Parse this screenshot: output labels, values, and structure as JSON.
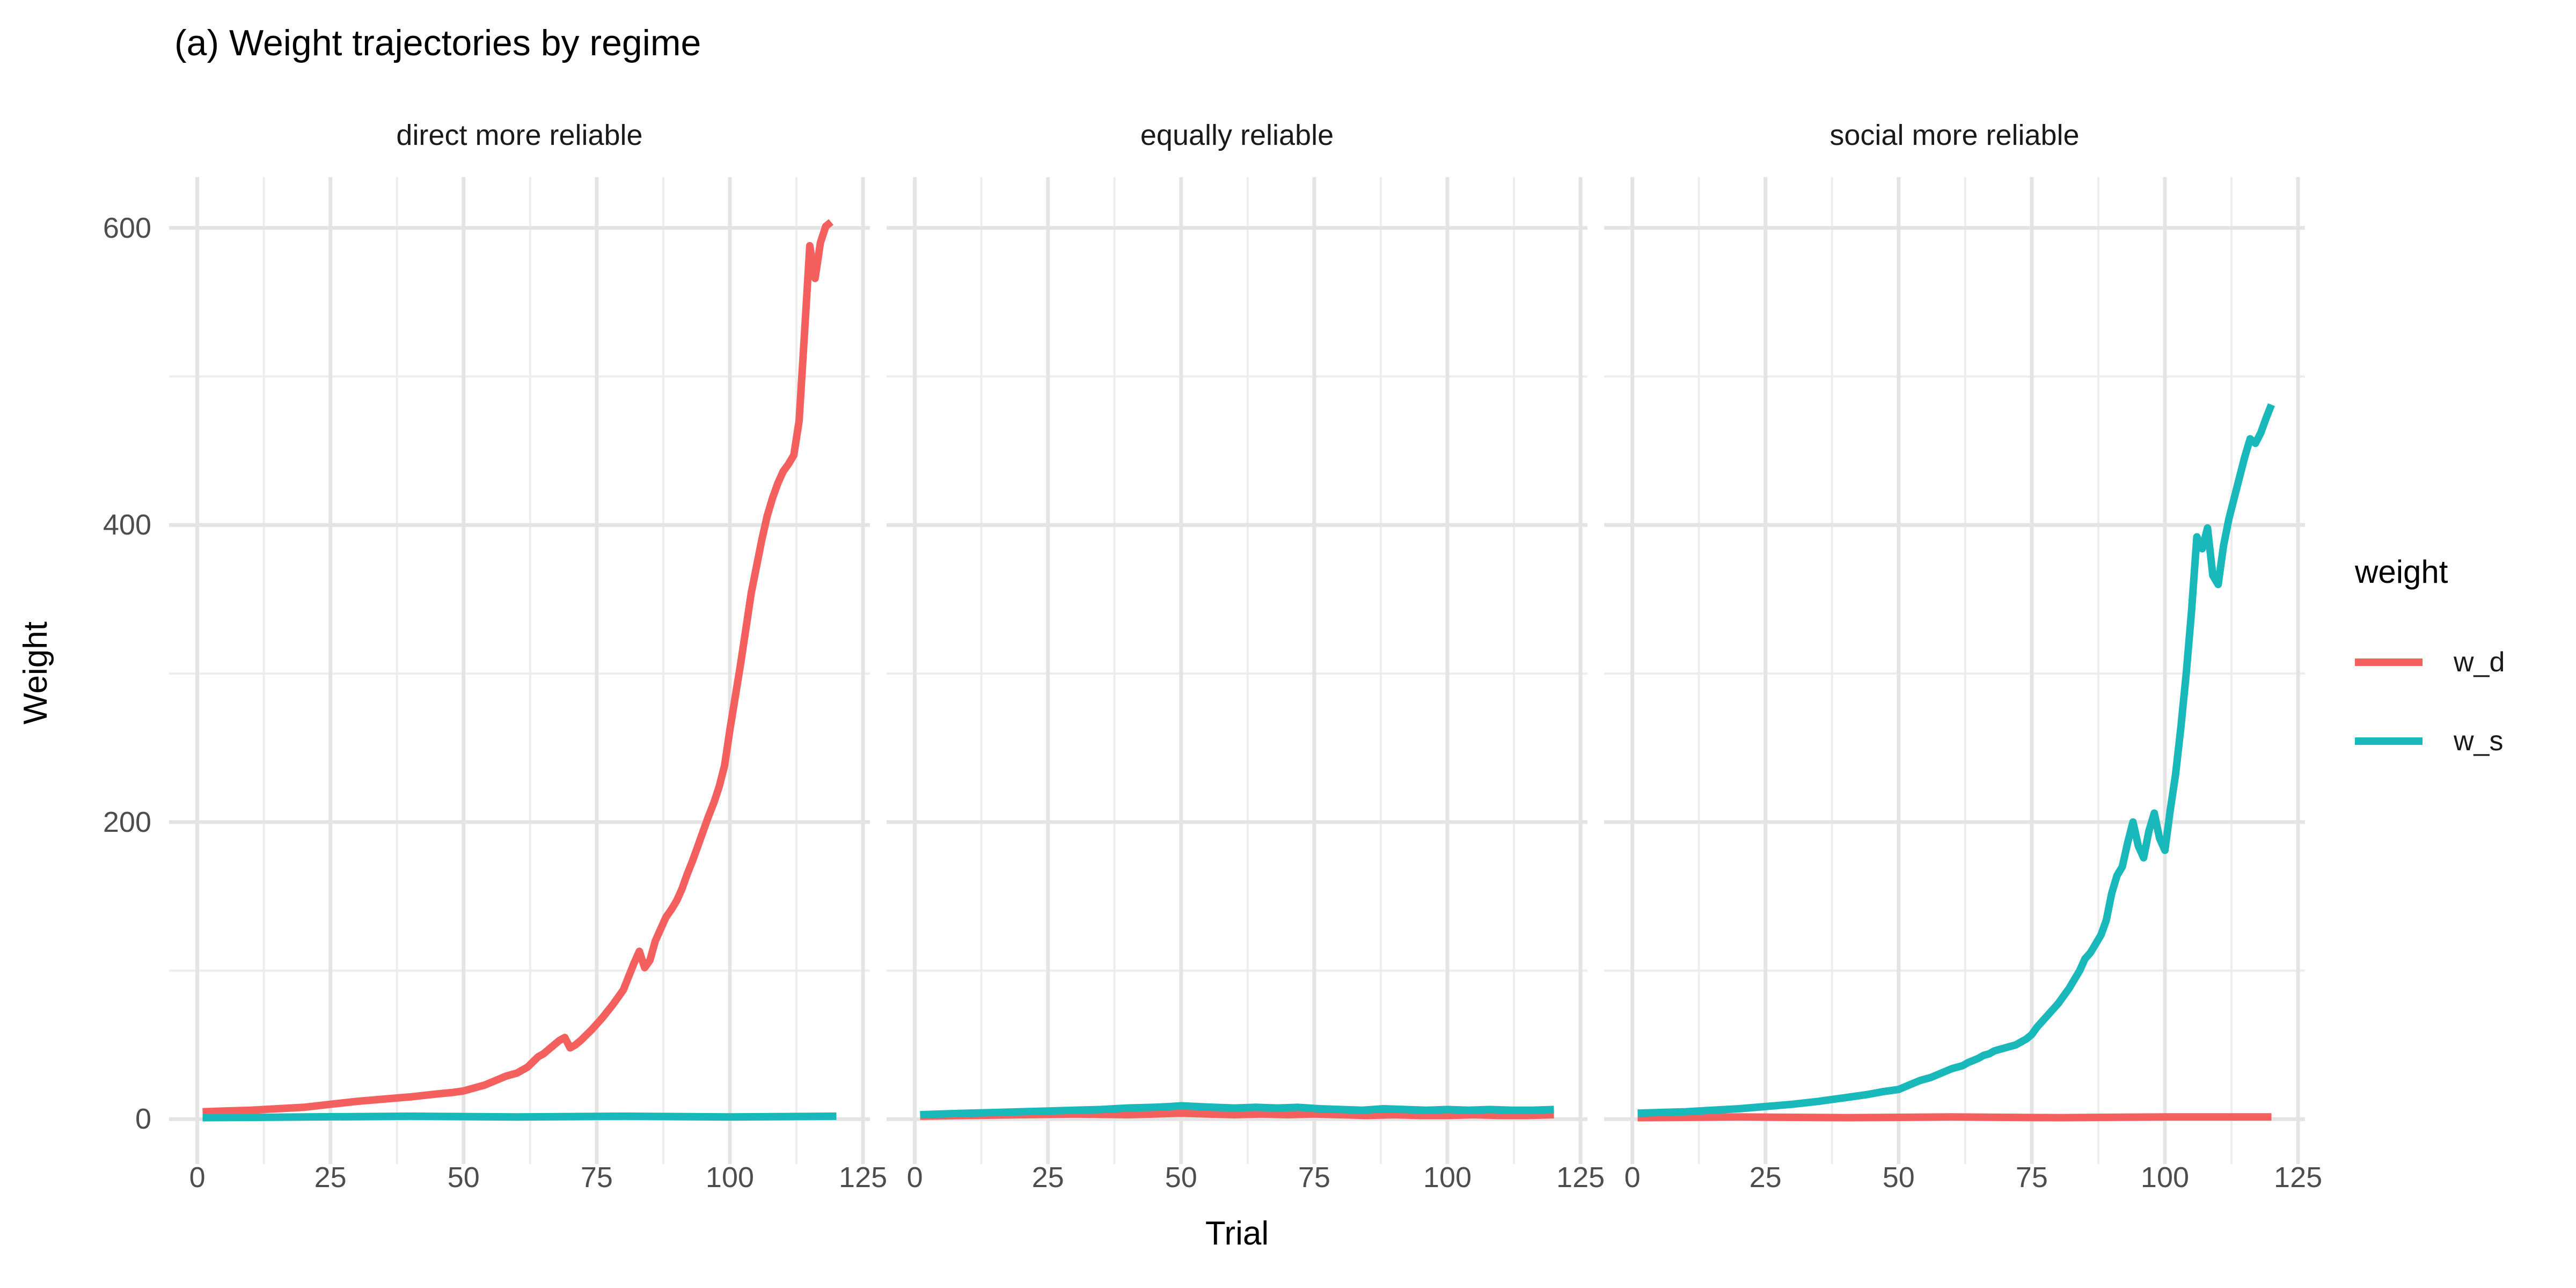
{
  "theme": {
    "background": "#ffffff",
    "grid_major_color": "#e4e4e4",
    "grid_minor_color": "#ededed",
    "tick_label_color": "#4d4d4d",
    "text_color": "#1a1a1a"
  },
  "chart_data": {
    "type": "line",
    "title": "(a) Weight trajectories by regime",
    "xlabel": "Trial",
    "ylabel": "Weight",
    "x_ticks": [
      0,
      25,
      50,
      75,
      100,
      125
    ],
    "x_minor_ticks": [
      12.5,
      37.5,
      62.5,
      87.5,
      112.5
    ],
    "y_ticks": [
      0,
      200,
      400,
      600
    ],
    "y_minor_ticks": [
      100,
      300,
      500
    ],
    "x_domain": [
      -5.3,
      126.3
    ],
    "y_domain": [
      -30.2,
      634.2
    ],
    "grid": true,
    "legend_position": "right",
    "colors": {
      "w_d": "#f4605d",
      "w_s": "#19b8ba"
    },
    "legend": {
      "title": "weight",
      "entries": [
        {
          "label": "w_d",
          "series": "w_d"
        },
        {
          "label": "w_s",
          "series": "w_s"
        }
      ]
    },
    "facets": [
      {
        "label": "direct more reliable",
        "series": [
          {
            "name": "w_d",
            "points": [
              [
                1,
                5
              ],
              [
                5,
                5.5
              ],
              [
                10,
                6
              ],
              [
                15,
                7
              ],
              [
                20,
                8
              ],
              [
                25,
                10
              ],
              [
                30,
                12
              ],
              [
                35,
                13.5
              ],
              [
                40,
                15
              ],
              [
                45,
                17
              ],
              [
                48,
                18
              ],
              [
                50,
                19
              ],
              [
                52,
                21
              ],
              [
                54,
                23
              ],
              [
                56,
                26
              ],
              [
                58,
                29
              ],
              [
                60,
                31
              ],
              [
                62,
                35
              ],
              [
                64,
                42
              ],
              [
                65,
                44
              ],
              [
                66,
                47
              ],
              [
                67,
                50
              ],
              [
                68,
                53
              ],
              [
                69,
                55
              ],
              [
                70,
                48
              ],
              [
                71,
                50
              ],
              [
                72,
                53
              ],
              [
                74,
                60
              ],
              [
                76,
                68
              ],
              [
                78,
                77
              ],
              [
                80,
                87
              ],
              [
                81,
                96
              ],
              [
                82,
                105
              ],
              [
                83,
                113
              ],
              [
                84,
                102
              ],
              [
                85,
                107
              ],
              [
                86,
                120
              ],
              [
                87,
                128
              ],
              [
                88,
                136
              ],
              [
                89,
                141
              ],
              [
                90,
                147
              ],
              [
                91,
                155
              ],
              [
                92,
                165
              ],
              [
                93,
                174
              ],
              [
                94,
                184
              ],
              [
                95,
                194
              ],
              [
                96,
                204
              ],
              [
                97,
                213
              ],
              [
                98,
                224
              ],
              [
                99,
                238
              ],
              [
                100,
                262
              ],
              [
                101,
                284
              ],
              [
                102,
                306
              ],
              [
                103,
                330
              ],
              [
                104,
                354
              ],
              [
                105,
                372
              ],
              [
                106,
                390
              ],
              [
                107,
                406
              ],
              [
                108,
                418
              ],
              [
                109,
                428
              ],
              [
                110,
                436
              ],
              [
                111,
                441
              ],
              [
                112,
                447
              ],
              [
                113,
                470
              ],
              [
                114,
                528
              ],
              [
                115,
                588
              ],
              [
                116,
                566
              ],
              [
                117,
                590
              ],
              [
                118,
                601
              ],
              [
                119,
                604
              ]
            ]
          },
          {
            "name": "w_s",
            "points": [
              [
                1,
                1
              ],
              [
                20,
                1.5
              ],
              [
                40,
                2
              ],
              [
                60,
                1.5
              ],
              [
                80,
                2
              ],
              [
                100,
                1.5
              ],
              [
                120,
                2
              ]
            ]
          }
        ]
      },
      {
        "label": "equally reliable",
        "series": [
          {
            "name": "w_d",
            "points": [
              [
                1,
                2
              ],
              [
                10,
                2.5
              ],
              [
                20,
                3
              ],
              [
                30,
                3.5
              ],
              [
                40,
                3
              ],
              [
                45,
                3.5
              ],
              [
                50,
                4
              ],
              [
                55,
                3.5
              ],
              [
                60,
                3
              ],
              [
                65,
                3.5
              ],
              [
                70,
                3
              ],
              [
                75,
                3.5
              ],
              [
                80,
                3
              ],
              [
                85,
                2.5
              ],
              [
                90,
                3
              ],
              [
                95,
                2.5
              ],
              [
                100,
                2.5
              ],
              [
                105,
                3
              ],
              [
                110,
                2.5
              ],
              [
                115,
                2.5
              ],
              [
                120,
                3
              ]
            ]
          },
          {
            "name": "w_s",
            "points": [
              [
                1,
                3
              ],
              [
                5,
                3.5
              ],
              [
                10,
                4
              ],
              [
                15,
                4.5
              ],
              [
                20,
                5
              ],
              [
                25,
                5.5
              ],
              [
                30,
                6
              ],
              [
                35,
                6.5
              ],
              [
                40,
                7.5
              ],
              [
                45,
                8
              ],
              [
                48,
                8.5
              ],
              [
                50,
                9
              ],
              [
                53,
                8.5
              ],
              [
                56,
                8
              ],
              [
                60,
                7.5
              ],
              [
                64,
                8
              ],
              [
                68,
                7.5
              ],
              [
                72,
                8
              ],
              [
                76,
                7
              ],
              [
                80,
                6.5
              ],
              [
                84,
                6
              ],
              [
                88,
                7
              ],
              [
                92,
                6.5
              ],
              [
                96,
                6
              ],
              [
                100,
                6.5
              ],
              [
                104,
                6
              ],
              [
                108,
                6.5
              ],
              [
                112,
                6
              ],
              [
                116,
                6
              ],
              [
                120,
                6.5
              ]
            ]
          }
        ]
      },
      {
        "label": "social more reliable",
        "series": [
          {
            "name": "w_d",
            "points": [
              [
                1,
                1
              ],
              [
                20,
                1.5
              ],
              [
                40,
                1
              ],
              [
                60,
                1.5
              ],
              [
                80,
                1
              ],
              [
                100,
                1.5
              ],
              [
                120,
                1.5
              ]
            ]
          },
          {
            "name": "w_s",
            "points": [
              [
                1,
                4
              ],
              [
                5,
                4.5
              ],
              [
                10,
                5
              ],
              [
                15,
                6
              ],
              [
                20,
                7
              ],
              [
                25,
                8.5
              ],
              [
                30,
                10
              ],
              [
                35,
                12
              ],
              [
                40,
                14.5
              ],
              [
                44,
                16.5
              ],
              [
                47,
                18.5
              ],
              [
                50,
                20
              ],
              [
                52,
                23
              ],
              [
                54,
                26
              ],
              [
                56,
                28
              ],
              [
                58,
                31
              ],
              [
                60,
                34
              ],
              [
                62,
                36
              ],
              [
                63,
                38
              ],
              [
                65,
                41
              ],
              [
                66,
                43
              ],
              [
                67,
                44
              ],
              [
                68,
                46
              ],
              [
                70,
                48
              ],
              [
                72,
                50
              ],
              [
                74,
                54
              ],
              [
                75,
                57
              ],
              [
                76,
                62
              ],
              [
                78,
                70
              ],
              [
                80,
                78
              ],
              [
                82,
                88
              ],
              [
                83,
                94
              ],
              [
                84,
                100
              ],
              [
                85,
                108
              ],
              [
                86,
                112
              ],
              [
                87,
                118
              ],
              [
                88,
                124
              ],
              [
                89,
                134
              ],
              [
                90,
                152
              ],
              [
                91,
                164
              ],
              [
                92,
                170
              ],
              [
                93,
                186
              ],
              [
                94,
                200
              ],
              [
                95,
                184
              ],
              [
                96,
                176
              ],
              [
                97,
                194
              ],
              [
                98,
                206
              ],
              [
                99,
                189
              ],
              [
                100,
                181
              ],
              [
                101,
                208
              ],
              [
                102,
                232
              ],
              [
                103,
                264
              ],
              [
                104,
                300
              ],
              [
                105,
                342
              ],
              [
                106,
                392
              ],
              [
                107,
                384
              ],
              [
                108,
                398
              ],
              [
                109,
                366
              ],
              [
                110,
                360
              ],
              [
                111,
                386
              ],
              [
                112,
                404
              ],
              [
                113,
                418
              ],
              [
                114,
                432
              ],
              [
                115,
                446
              ],
              [
                116,
                458
              ],
              [
                117,
                455
              ],
              [
                118,
                462
              ],
              [
                119,
                472
              ],
              [
                120,
                481
              ]
            ]
          }
        ]
      }
    ]
  }
}
